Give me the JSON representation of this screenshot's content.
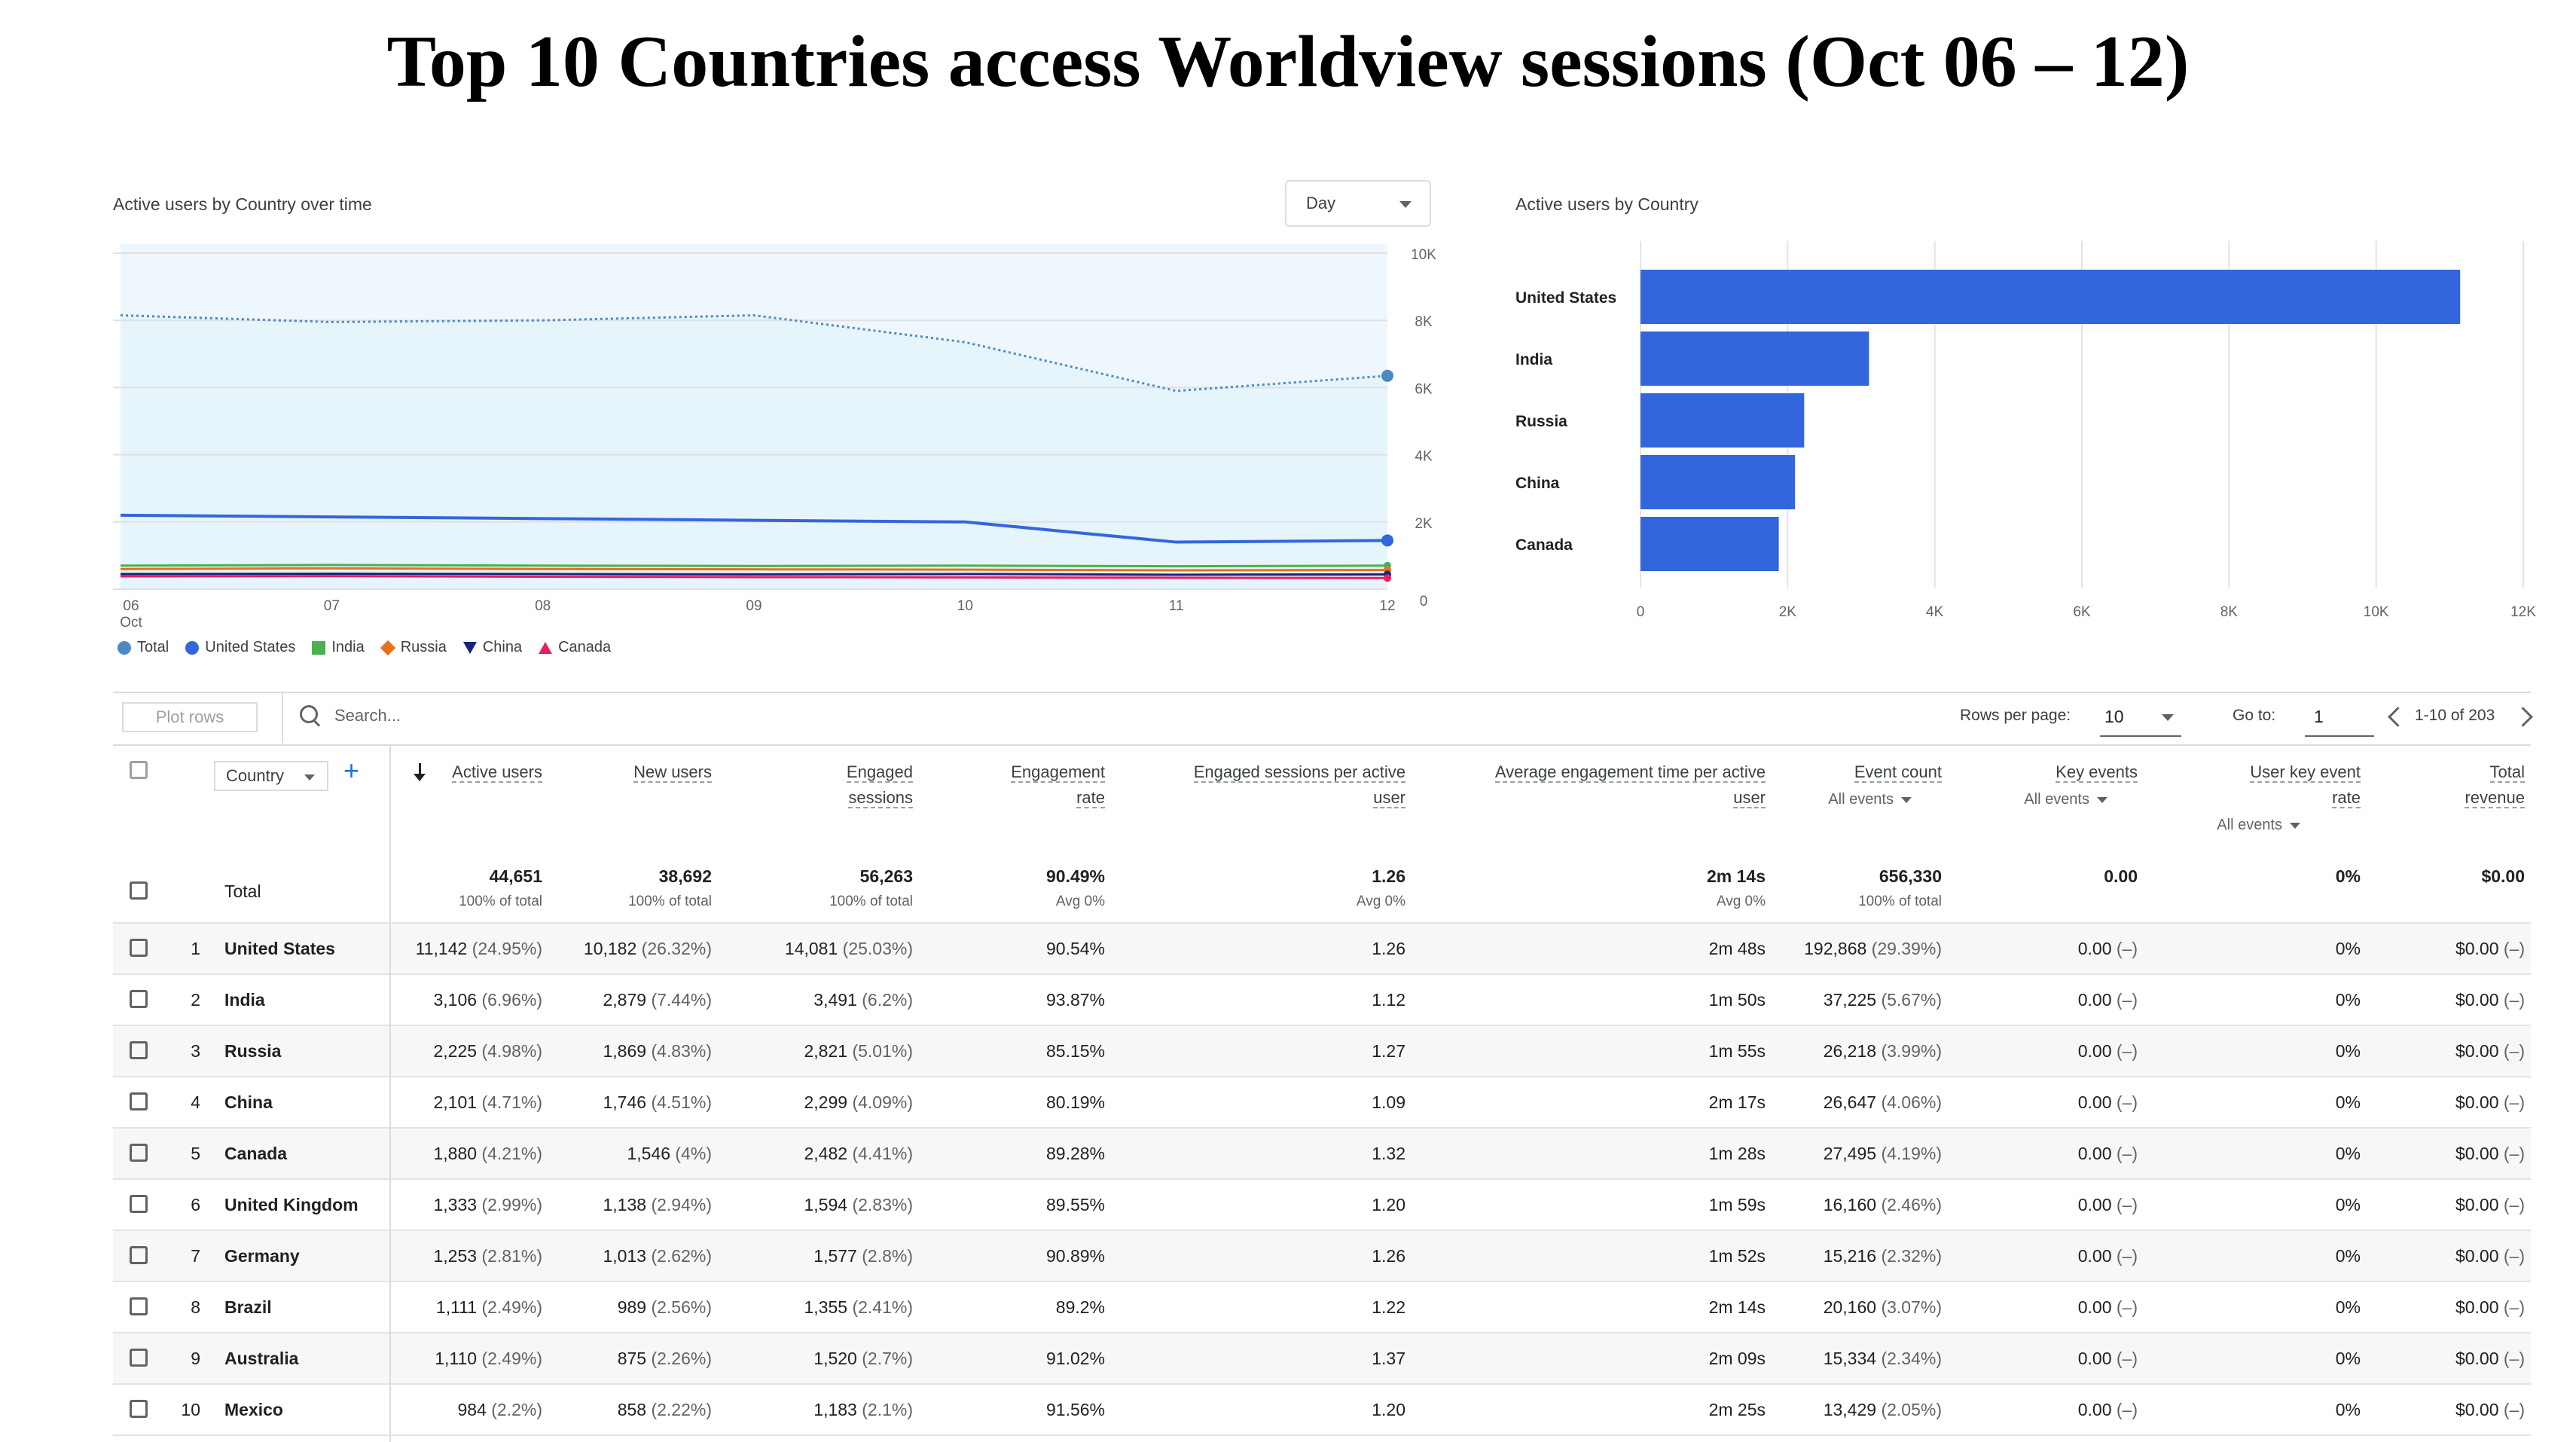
{
  "page": {
    "title": "Top 10 Countries access Worldview sessions (Oct 06 – 12)"
  },
  "line_card": {
    "title": "Active users by Country over time",
    "interval_select": "Day"
  },
  "bar_card": {
    "title": "Active users by Country"
  },
  "colors": {
    "accent_blue": "#3366dd",
    "total_fill": "#e6f4fc",
    "total_line": "#4a8bc4",
    "india": "#4caf50",
    "russia": "#e8711a",
    "china": "#1a237e",
    "canada": "#e91e63"
  },
  "chart_data": [
    {
      "type": "line",
      "title": "Active users by Country over time",
      "x": [
        "06",
        "07",
        "08",
        "09",
        "10",
        "11",
        "12"
      ],
      "x_sub": [
        "Oct",
        "",
        "",
        "",
        "",
        "",
        ""
      ],
      "ylim": [
        0,
        10000
      ],
      "yticks": [
        "0",
        "2K",
        "4K",
        "6K",
        "8K",
        "10K"
      ],
      "ytick_values": [
        0,
        2000,
        4000,
        6000,
        8000,
        10000
      ],
      "series": [
        {
          "name": "Total",
          "values": [
            8150,
            7950,
            8000,
            8150,
            7350,
            5900,
            6350
          ],
          "style": "dotted-area"
        },
        {
          "name": "United States",
          "values": [
            2200,
            2150,
            2100,
            2050,
            2000,
            1400,
            1450
          ]
        },
        {
          "name": "India",
          "values": [
            700,
            720,
            700,
            690,
            700,
            680,
            700
          ]
        },
        {
          "name": "Russia",
          "values": [
            600,
            620,
            600,
            590,
            580,
            560,
            570
          ]
        },
        {
          "name": "China",
          "values": [
            450,
            460,
            450,
            440,
            450,
            430,
            440
          ]
        },
        {
          "name": "Canada",
          "values": [
            380,
            390,
            370,
            360,
            350,
            340,
            330
          ]
        }
      ],
      "legend": "bottom-left",
      "grid": true
    },
    {
      "type": "bar",
      "title": "Active users by Country",
      "orientation": "horizontal",
      "categories": [
        "United States",
        "India",
        "Russia",
        "China",
        "Canada"
      ],
      "values": [
        11142,
        3106,
        2225,
        2101,
        1880
      ],
      "xlim": [
        0,
        12000
      ],
      "xticks": [
        "0",
        "2K",
        "4K",
        "6K",
        "8K",
        "10K",
        "12K"
      ],
      "xtick_values": [
        0,
        2000,
        4000,
        6000,
        8000,
        10000,
        12000
      ],
      "grid": true
    }
  ],
  "legend": [
    {
      "name": "Total",
      "shape": "pin",
      "color": "#4a8bc4"
    },
    {
      "name": "United States",
      "shape": "circle",
      "color": "#3366dd"
    },
    {
      "name": "India",
      "shape": "square",
      "color": "#4caf50"
    },
    {
      "name": "Russia",
      "shape": "diamond",
      "color": "#e8711a"
    },
    {
      "name": "China",
      "shape": "triangle-down",
      "color": "#1a237e"
    },
    {
      "name": "Canada",
      "shape": "triangle-up",
      "color": "#e91e63"
    }
  ],
  "toolbar": {
    "plot_rows": "Plot rows",
    "search_placeholder": "Search...",
    "rows_per_page_label": "Rows per page:",
    "rows_per_page_value": "10",
    "goto_label": "Go to:",
    "goto_value": "1",
    "range": "1-10 of 203"
  },
  "table": {
    "dimension": "Country",
    "columns": [
      {
        "label": [
          "Active users"
        ],
        "sub": ""
      },
      {
        "label": [
          "New users"
        ],
        "sub": ""
      },
      {
        "label": [
          "Engaged",
          "sessions"
        ],
        "sub": ""
      },
      {
        "label": [
          "Engagement",
          "rate"
        ],
        "sub": ""
      },
      {
        "label": [
          "Engaged sessions per active",
          "user"
        ],
        "sub": ""
      },
      {
        "label": [
          "Average engagement time per active",
          "user"
        ],
        "sub": ""
      },
      {
        "label": [
          "Event count"
        ],
        "sub": "All events"
      },
      {
        "label": [
          "Key events"
        ],
        "sub": "All events"
      },
      {
        "label": [
          "User key event",
          "rate"
        ],
        "sub": "All events"
      },
      {
        "label": [
          "Total",
          "revenue"
        ],
        "sub": ""
      }
    ],
    "total": {
      "label": "Total",
      "values": [
        "44,651",
        "38,692",
        "56,263",
        "90.49%",
        "1.26",
        "2m 14s",
        "656,330",
        "0.00",
        "0%",
        "$0.00"
      ],
      "subs": [
        "100% of total",
        "100% of total",
        "100% of total",
        "Avg 0%",
        "Avg 0%",
        "Avg 0%",
        "100% of total",
        "",
        "",
        ""
      ]
    },
    "rows": [
      {
        "rank": "1",
        "country": "United States",
        "cells": [
          [
            "11,142",
            "(24.95%)"
          ],
          [
            "10,182",
            "(26.32%)"
          ],
          [
            "14,081",
            "(25.03%)"
          ],
          [
            "90.54%",
            ""
          ],
          [
            "1.26",
            ""
          ],
          [
            "2m 48s",
            ""
          ],
          [
            "192,868",
            "(29.39%)"
          ],
          [
            "0.00",
            "(–)"
          ],
          [
            "0%",
            ""
          ],
          [
            "$0.00",
            "(–)"
          ]
        ]
      },
      {
        "rank": "2",
        "country": "India",
        "cells": [
          [
            "3,106",
            "(6.96%)"
          ],
          [
            "2,879",
            "(7.44%)"
          ],
          [
            "3,491",
            "(6.2%)"
          ],
          [
            "93.87%",
            ""
          ],
          [
            "1.12",
            ""
          ],
          [
            "1m 50s",
            ""
          ],
          [
            "37,225",
            "(5.67%)"
          ],
          [
            "0.00",
            "(–)"
          ],
          [
            "0%",
            ""
          ],
          [
            "$0.00",
            "(–)"
          ]
        ]
      },
      {
        "rank": "3",
        "country": "Russia",
        "cells": [
          [
            "2,225",
            "(4.98%)"
          ],
          [
            "1,869",
            "(4.83%)"
          ],
          [
            "2,821",
            "(5.01%)"
          ],
          [
            "85.15%",
            ""
          ],
          [
            "1.27",
            ""
          ],
          [
            "1m 55s",
            ""
          ],
          [
            "26,218",
            "(3.99%)"
          ],
          [
            "0.00",
            "(–)"
          ],
          [
            "0%",
            ""
          ],
          [
            "$0.00",
            "(–)"
          ]
        ]
      },
      {
        "rank": "4",
        "country": "China",
        "cells": [
          [
            "2,101",
            "(4.71%)"
          ],
          [
            "1,746",
            "(4.51%)"
          ],
          [
            "2,299",
            "(4.09%)"
          ],
          [
            "80.19%",
            ""
          ],
          [
            "1.09",
            ""
          ],
          [
            "2m 17s",
            ""
          ],
          [
            "26,647",
            "(4.06%)"
          ],
          [
            "0.00",
            "(–)"
          ],
          [
            "0%",
            ""
          ],
          [
            "$0.00",
            "(–)"
          ]
        ]
      },
      {
        "rank": "5",
        "country": "Canada",
        "cells": [
          [
            "1,880",
            "(4.21%)"
          ],
          [
            "1,546",
            "(4%)"
          ],
          [
            "2,482",
            "(4.41%)"
          ],
          [
            "89.28%",
            ""
          ],
          [
            "1.32",
            ""
          ],
          [
            "1m 28s",
            ""
          ],
          [
            "27,495",
            "(4.19%)"
          ],
          [
            "0.00",
            "(–)"
          ],
          [
            "0%",
            ""
          ],
          [
            "$0.00",
            "(–)"
          ]
        ]
      },
      {
        "rank": "6",
        "country": "United Kingdom",
        "cells": [
          [
            "1,333",
            "(2.99%)"
          ],
          [
            "1,138",
            "(2.94%)"
          ],
          [
            "1,594",
            "(2.83%)"
          ],
          [
            "89.55%",
            ""
          ],
          [
            "1.20",
            ""
          ],
          [
            "1m 59s",
            ""
          ],
          [
            "16,160",
            "(2.46%)"
          ],
          [
            "0.00",
            "(–)"
          ],
          [
            "0%",
            ""
          ],
          [
            "$0.00",
            "(–)"
          ]
        ]
      },
      {
        "rank": "7",
        "country": "Germany",
        "cells": [
          [
            "1,253",
            "(2.81%)"
          ],
          [
            "1,013",
            "(2.62%)"
          ],
          [
            "1,577",
            "(2.8%)"
          ],
          [
            "90.89%",
            ""
          ],
          [
            "1.26",
            ""
          ],
          [
            "1m 52s",
            ""
          ],
          [
            "15,216",
            "(2.32%)"
          ],
          [
            "0.00",
            "(–)"
          ],
          [
            "0%",
            ""
          ],
          [
            "$0.00",
            "(–)"
          ]
        ]
      },
      {
        "rank": "8",
        "country": "Brazil",
        "cells": [
          [
            "1,111",
            "(2.49%)"
          ],
          [
            "989",
            "(2.56%)"
          ],
          [
            "1,355",
            "(2.41%)"
          ],
          [
            "89.2%",
            ""
          ],
          [
            "1.22",
            ""
          ],
          [
            "2m 14s",
            ""
          ],
          [
            "20,160",
            "(3.07%)"
          ],
          [
            "0.00",
            "(–)"
          ],
          [
            "0%",
            ""
          ],
          [
            "$0.00",
            "(–)"
          ]
        ]
      },
      {
        "rank": "9",
        "country": "Australia",
        "cells": [
          [
            "1,110",
            "(2.49%)"
          ],
          [
            "875",
            "(2.26%)"
          ],
          [
            "1,520",
            "(2.7%)"
          ],
          [
            "91.02%",
            ""
          ],
          [
            "1.37",
            ""
          ],
          [
            "2m 09s",
            ""
          ],
          [
            "15,334",
            "(2.34%)"
          ],
          [
            "0.00",
            "(–)"
          ],
          [
            "0%",
            ""
          ],
          [
            "$0.00",
            "(–)"
          ]
        ]
      },
      {
        "rank": "10",
        "country": "Mexico",
        "cells": [
          [
            "984",
            "(2.2%)"
          ],
          [
            "858",
            "(2.22%)"
          ],
          [
            "1,183",
            "(2.1%)"
          ],
          [
            "91.56%",
            ""
          ],
          [
            "1.20",
            ""
          ],
          [
            "2m 25s",
            ""
          ],
          [
            "13,429",
            "(2.05%)"
          ],
          [
            "0.00",
            "(–)"
          ],
          [
            "0%",
            ""
          ],
          [
            "$0.00",
            "(–)"
          ]
        ]
      }
    ]
  }
}
